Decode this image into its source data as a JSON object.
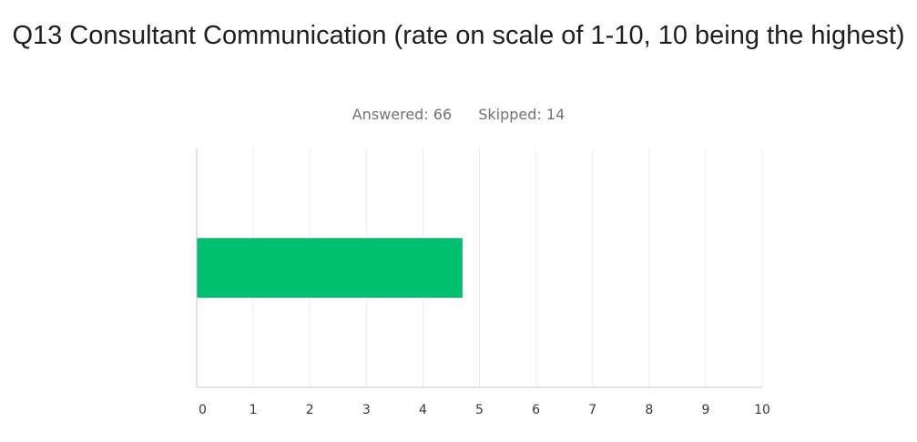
{
  "question": {
    "title": "Q13 Consultant Communication (rate on scale of 1-10, 10 being the highest)"
  },
  "stats": {
    "answered_label": "Answered: 66",
    "skipped_label": "Skipped: 14"
  },
  "chart_data": {
    "type": "bar",
    "orientation": "horizontal",
    "title": "Q13 Consultant Communication (rate on scale of 1-10, 10 being the highest)",
    "categories": [
      ""
    ],
    "values": [
      4.7
    ],
    "xlim": [
      0,
      10
    ],
    "ticks": [
      "0",
      "1",
      "2",
      "3",
      "4",
      "5",
      "6",
      "7",
      "8",
      "9",
      "10"
    ],
    "grid": true,
    "legend": "none",
    "bar_color": "#00bf6f",
    "grid_color": "#ececec",
    "axis_color": "#c8c8c8"
  }
}
